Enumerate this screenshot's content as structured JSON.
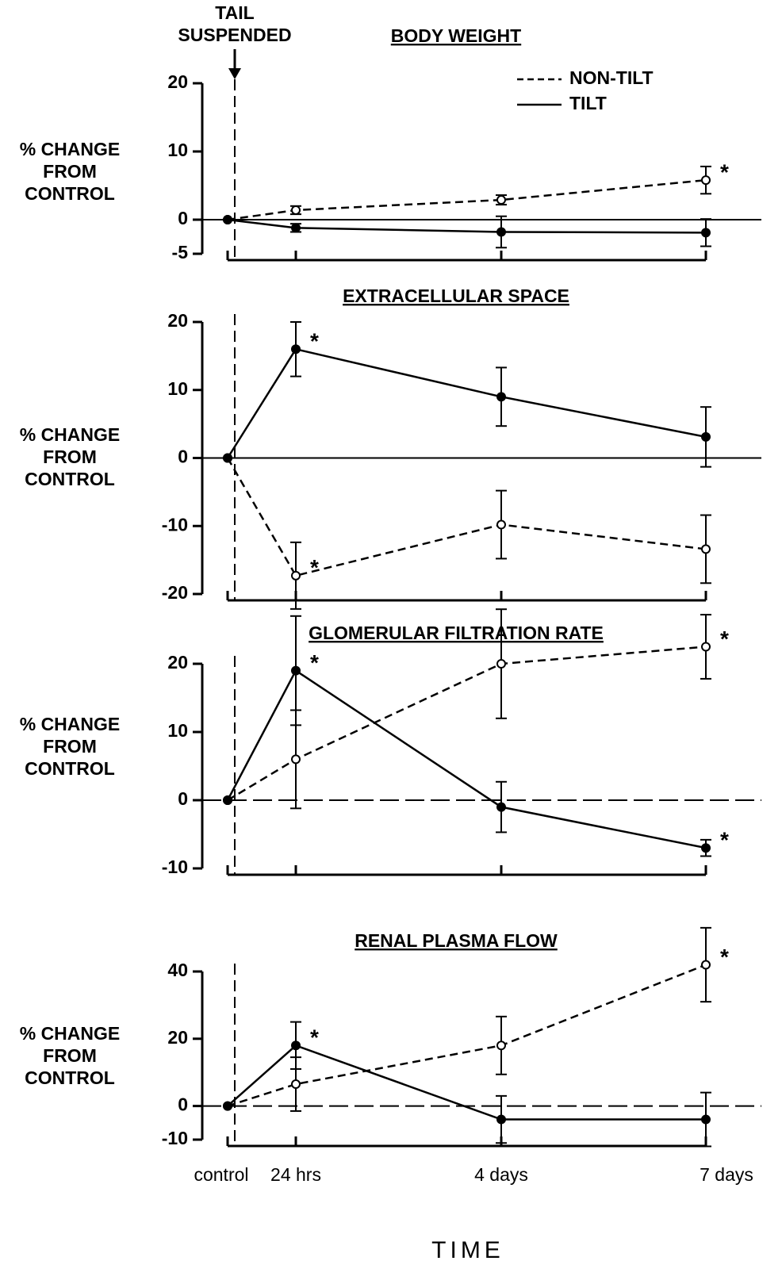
{
  "chart_data": [
    {
      "type": "line",
      "title": "BODY WEIGHT",
      "ylabel": [
        "% CHANGE",
        "FROM",
        "CONTROL"
      ],
      "annotation": [
        "TAIL",
        "SUSPENDED"
      ],
      "star": "*",
      "legend": true,
      "ylim": [
        -5,
        20
      ],
      "yticks": [
        -5,
        0,
        10,
        20
      ],
      "series": [
        {
          "name": "NON-TILT",
          "color": "#000",
          "style": "dashed",
          "marker": "open",
          "values": [
            0,
            1.4,
            2.9,
            5.8
          ],
          "errors": [
            null,
            0.6,
            0.7,
            2
          ],
          "starred": [
            false,
            false,
            false,
            true
          ]
        },
        {
          "name": "TILT",
          "color": "#000",
          "style": "solid",
          "marker": "filled",
          "values": [
            0,
            -1.2,
            -1.8,
            -1.9
          ],
          "errors": [
            null,
            0.6,
            2.3,
            2
          ],
          "starred": [
            false,
            false,
            false,
            false
          ]
        }
      ]
    },
    {
      "type": "line",
      "title": "EXTRACELLULAR SPACE",
      "ylabel": [
        "% CHANGE",
        "FROM",
        "CONTROL"
      ],
      "star": "*",
      "ylim": [
        -20,
        20
      ],
      "yticks": [
        -20,
        -10,
        0,
        10,
        20
      ],
      "series": [
        {
          "color": "#000",
          "style": "dashed",
          "marker": "open",
          "values": [
            0,
            -17.3,
            -9.8,
            -13.4
          ],
          "errors": [
            null,
            4.9,
            5,
            5
          ],
          "starred": [
            false,
            true,
            false,
            false
          ]
        },
        {
          "color": "#000",
          "style": "solid",
          "marker": "filled",
          "values": [
            0,
            16,
            9,
            3.1
          ],
          "errors": [
            null,
            4,
            4.3,
            4.4
          ],
          "starred": [
            false,
            true,
            false,
            false
          ]
        }
      ]
    },
    {
      "type": "line",
      "title": "GLOMERULAR FILTRATION RATE",
      "ylabel": [
        "% CHANGE",
        "FROM",
        "CONTROL"
      ],
      "star": "*",
      "ylim": [
        -10,
        20
      ],
      "yticks": [
        -10,
        0,
        10,
        20
      ],
      "series": [
        {
          "color": "#000",
          "style": "dashed",
          "marker": "open",
          "values": [
            0,
            6,
            20,
            22.5
          ],
          "errors": [
            null,
            7.2,
            8,
            4.7
          ],
          "starred": [
            false,
            false,
            false,
            true
          ]
        },
        {
          "color": "#000",
          "style": "solid",
          "marker": "filled",
          "values": [
            0,
            19,
            -1,
            -7
          ],
          "errors": [
            null,
            8,
            3.7,
            1.2
          ],
          "starred": [
            false,
            true,
            false,
            true
          ]
        }
      ]
    },
    {
      "type": "line",
      "title": "RENAL PLASMA FLOW",
      "ylabel": [
        "% CHANGE",
        "FROM",
        "CONTROL"
      ],
      "star": "*",
      "xlabel": "TIME",
      "categories": [
        "control",
        "24 hrs",
        "4 days",
        "7 days"
      ],
      "ylim": [
        -10,
        40
      ],
      "yticks": [
        -10,
        0,
        20,
        40
      ],
      "series": [
        {
          "color": "#000",
          "style": "dashed",
          "marker": "open",
          "values": [
            0,
            6.5,
            18,
            42
          ],
          "errors": [
            null,
            8,
            8.6,
            11
          ],
          "starred": [
            false,
            false,
            false,
            true
          ]
        },
        {
          "color": "#000",
          "style": "solid",
          "marker": "filled",
          "values": [
            0,
            18,
            -4,
            -4
          ],
          "errors": [
            null,
            7,
            7,
            8
          ],
          "starred": [
            false,
            true,
            false,
            false
          ]
        }
      ]
    }
  ]
}
